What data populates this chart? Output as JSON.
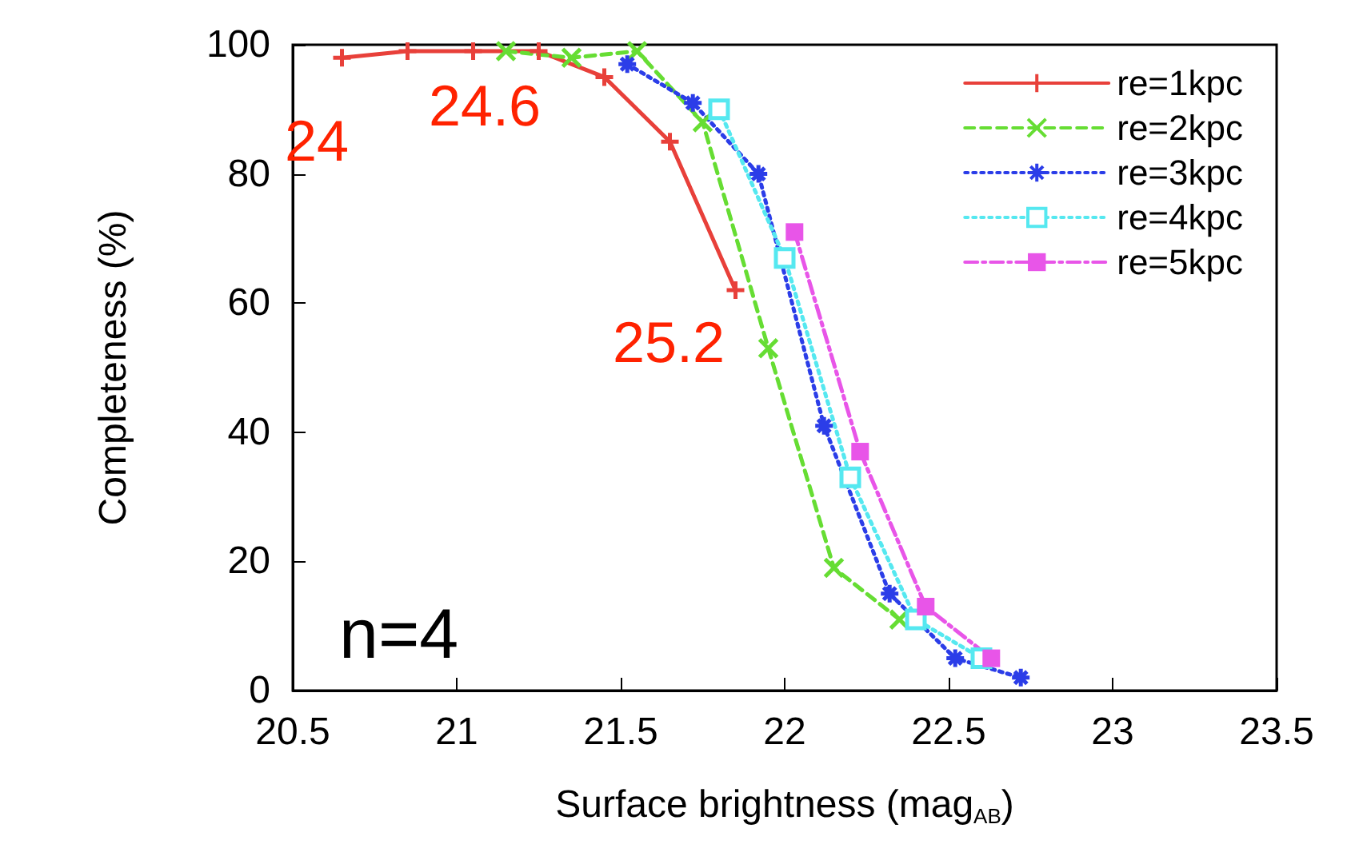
{
  "chart_data": {
    "type": "line",
    "xlabel": "Surface brightness (mag$_{AB}$)",
    "ylabel": "Completeness (%)",
    "xlim": [
      20.5,
      23.5
    ],
    "xticks": [
      20.5,
      21,
      21.5,
      22,
      22.5,
      23,
      23.5
    ],
    "ylim": [
      0,
      100
    ],
    "yticks": [
      0,
      20,
      40,
      60,
      80,
      100
    ],
    "grid": false,
    "legend": "top right",
    "series": [
      {
        "name": "re=1kpc",
        "color": "#e8403a",
        "marker": "cross",
        "line_style": "solid",
        "x": [
          20.65,
          20.85,
          21.05,
          21.25,
          21.45,
          21.65,
          21.85
        ],
        "values": [
          98,
          99,
          99,
          99,
          95,
          85,
          62
        ]
      },
      {
        "name": "re=2kpc",
        "color": "#66dd33",
        "marker": "cross",
        "line_style": "dashed",
        "x": [
          21.15,
          21.35,
          21.55,
          21.75,
          21.95,
          22.15,
          22.35
        ],
        "values": [
          99,
          98,
          99,
          88,
          53,
          19,
          11
        ]
      },
      {
        "name": "re=3kpc",
        "color": "#2b3de8",
        "marker": "cross",
        "line_style": "dotted",
        "x": [
          21.52,
          21.72,
          21.92,
          22.12,
          22.32,
          22.52,
          22.72
        ],
        "values": [
          97,
          91,
          80,
          41,
          15,
          5,
          2
        ]
      },
      {
        "name": "re=4kpc",
        "color": "#55e8f0",
        "marker": "square",
        "line_style": "dotted",
        "x": [
          21.8,
          22.0,
          22.2,
          22.4,
          22.6
        ],
        "values": [
          90,
          67,
          33,
          11,
          5
        ]
      },
      {
        "name": "re=5kpc",
        "color": "#e855e8",
        "marker": "square",
        "line_style": "dashdot",
        "x": [
          22.03,
          22.23,
          22.43,
          22.63
        ],
        "values": [
          71,
          37,
          13,
          5
        ]
      }
    ],
    "annotations": [
      "24",
      "24.6",
      "25.2",
      "n=4"
    ]
  }
}
